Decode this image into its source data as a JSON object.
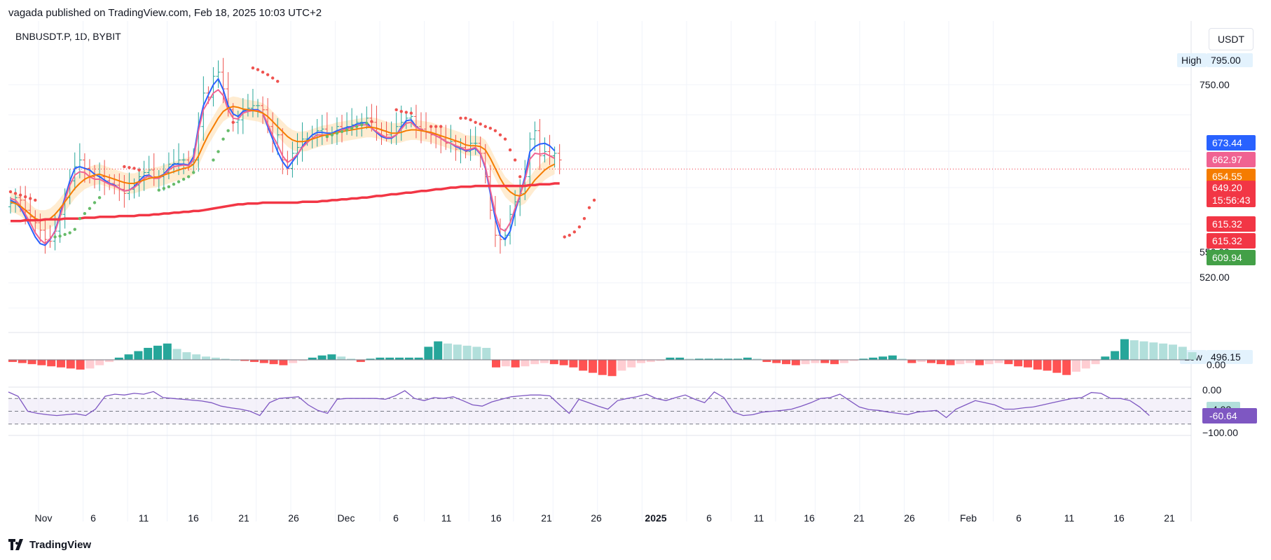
{
  "header": {
    "attribution": "vagada published on TradingView.com, Feb 18, 2025 10:03 UTC+2"
  },
  "symbol": {
    "label": "BNBUSDT.P, 1D, BYBIT"
  },
  "currency": "USDT",
  "footer": {
    "brand": "TradingView"
  },
  "colors": {
    "up": "#26a69a",
    "down": "#ef5350",
    "fast_ma": "#2962ff",
    "mid_ma": "#f06292",
    "slow_ma": "#f57c00",
    "long_ma": "#f23645",
    "psar_up": "#66bb6a",
    "psar_down": "#ef5350",
    "osc": "#7e57c2"
  },
  "chart_data": [
    {
      "type": "candlestick",
      "y_ticks": [
        "750.00",
        "520.00",
        "550.00"
      ],
      "ylim": [
        490,
        800
      ],
      "x_tick_labels": [
        "Nov",
        "6",
        "11",
        "16",
        "21",
        "26",
        "Dec",
        "6",
        "11",
        "16",
        "21",
        "26",
        "2025",
        "6",
        "11",
        "16",
        "21",
        "26",
        "Feb",
        "6",
        "11",
        "16",
        "21"
      ],
      "high_label": {
        "text": "High",
        "value": "795.00"
      },
      "low_label": {
        "text": "Low",
        "value": "496.15"
      },
      "price_badges": [
        {
          "value": "673.44",
          "color": "#2962ff"
        },
        {
          "value": "662.97",
          "color": "#f06292"
        },
        {
          "value": "654.55",
          "color": "#f57c00"
        },
        {
          "value": "649.20",
          "sub": "15:56:43",
          "color": "#f23645"
        },
        {
          "value": "615.32",
          "color": "#f23645"
        },
        {
          "value": "615.32",
          "color": "#f23645"
        },
        {
          "value": "609.94",
          "color": "#43a047"
        }
      ],
      "close": [
        608,
        615,
        612,
        600,
        592,
        585,
        576,
        565,
        563,
        575,
        595,
        615,
        635,
        652,
        660,
        650,
        640,
        637,
        640,
        635,
        632,
        630,
        625,
        620,
        625,
        630,
        640,
        645,
        648,
        640,
        640,
        645,
        655,
        656,
        660,
        660,
        655,
        660,
        700,
        740,
        735,
        760,
        765,
        745,
        720,
        705,
        708,
        720,
        722,
        725,
        725,
        720,
        700,
        680,
        690,
        660,
        650,
        668,
        675,
        685,
        685,
        690,
        695,
        697,
        690,
        692,
        700,
        698,
        700,
        702,
        705,
        705,
        710,
        705,
        697,
        695,
        690,
        692,
        700,
        705,
        710,
        712,
        700,
        697,
        693,
        690,
        688,
        685,
        680,
        682,
        673,
        675,
        670,
        680,
        680,
        668,
        640,
        600,
        570,
        565,
        570,
        595,
        610,
        620,
        640,
        685,
        695,
        665,
        670,
        665,
        668,
        660
      ],
      "series": [
        {
          "name": "",
          "style": "fast_ma",
          "values": [
            612,
            609,
            603,
            592,
            580,
            568,
            560,
            558,
            565,
            575,
            595,
            615,
            635,
            650,
            652,
            650,
            648,
            643,
            640,
            636,
            632,
            630,
            626,
            623,
            624,
            628,
            635,
            641,
            642,
            638,
            640,
            643,
            650,
            655,
            655,
            655,
            654,
            664,
            700,
            725,
            738,
            750,
            757,
            744,
            725,
            715,
            712,
            718,
            720,
            720,
            720,
            716,
            700,
            685,
            670,
            658,
            650,
            658,
            666,
            676,
            684,
            690,
            693,
            693,
            692,
            692,
            695,
            697,
            699,
            700,
            703,
            704,
            705,
            698,
            693,
            688,
            686,
            686,
            690,
            699,
            707,
            708,
            700,
            696,
            694,
            692,
            689,
            686,
            682,
            680,
            676,
            674,
            671,
            672,
            674,
            667,
            650,
            620,
            590,
            570,
            565,
            575,
            598,
            618,
            640,
            670,
            676,
            679,
            680,
            677,
            671
          ]
        },
        {
          "name": "",
          "style": "mid_ma",
          "values": [
            614,
            612,
            605,
            595,
            585,
            573,
            565,
            560,
            566,
            574,
            592,
            612,
            630,
            642,
            646,
            645,
            640,
            637,
            637,
            634,
            631,
            629,
            626,
            623,
            624,
            627,
            632,
            638,
            641,
            638,
            638,
            642,
            648,
            652,
            653,
            654,
            653,
            660,
            695,
            720,
            730,
            740,
            744,
            737,
            720,
            710,
            709,
            716,
            718,
            719,
            719,
            716,
            703,
            689,
            678,
            665,
            657,
            661,
            667,
            675,
            681,
            686,
            690,
            690,
            690,
            691,
            693,
            696,
            697,
            699,
            701,
            702,
            702,
            698,
            694,
            690,
            687,
            687,
            690,
            697,
            704,
            705,
            699,
            696,
            694,
            692,
            689,
            686,
            682,
            680,
            677,
            675,
            672,
            673,
            675,
            668,
            652,
            624,
            596,
            578,
            575,
            585,
            602,
            618,
            636,
            661,
            668,
            667,
            668,
            665,
            662
          ]
        },
        {
          "name": "",
          "style": "slow_ma",
          "values": [
            610,
            608,
            605,
            600,
            595,
            590,
            588,
            588,
            590,
            595,
            602,
            610,
            618,
            626,
            632,
            637,
            640,
            642,
            643,
            641,
            639,
            637,
            635,
            633,
            632,
            632,
            634,
            636,
            638,
            639,
            640,
            642,
            644,
            646,
            648,
            650,
            651,
            655,
            665,
            678,
            690,
            700,
            710,
            718,
            722,
            724,
            723,
            721,
            720,
            719,
            718,
            716,
            712,
            706,
            700,
            694,
            688,
            684,
            682,
            682,
            683,
            685,
            687,
            689,
            690,
            691,
            693,
            694,
            695,
            696,
            697,
            698,
            699,
            699,
            698,
            696,
            694,
            692,
            692,
            693,
            695,
            696,
            696,
            695,
            694,
            693,
            691,
            689,
            687,
            685,
            683,
            681,
            678,
            677,
            677,
            676,
            672,
            662,
            650,
            638,
            628,
            622,
            618,
            617,
            620,
            628,
            636,
            642,
            648,
            652,
            655
          ]
        },
        {
          "name": "",
          "style": "long_ma",
          "values": [
            587,
            587,
            587,
            588,
            588,
            588,
            588,
            589,
            589,
            589,
            589,
            590,
            590,
            590,
            590,
            591,
            591,
            591,
            592,
            592,
            592,
            592,
            593,
            593,
            593,
            593,
            594,
            594,
            594,
            595,
            595,
            596,
            596,
            597,
            597,
            598,
            598,
            599,
            599,
            600,
            601,
            602,
            603,
            604,
            605,
            606,
            607,
            607,
            608,
            608,
            608,
            609,
            609,
            609,
            609,
            609,
            609,
            609,
            609,
            610,
            610,
            610,
            610,
            611,
            611,
            612,
            612,
            613,
            613,
            614,
            614,
            615,
            615,
            616,
            617,
            617,
            618,
            619,
            619,
            620,
            621,
            621,
            622,
            623,
            623,
            624,
            625,
            625,
            626,
            627,
            627,
            628,
            628,
            628,
            629,
            629,
            629,
            629,
            629,
            629,
            629,
            629,
            629,
            629,
            629,
            630,
            630,
            631,
            631,
            631,
            632,
            632
          ]
        },
        {
          "name": "",
          "style": "psar",
          "values": [
            622,
            620,
            618,
            616,
            614,
            612,
            null,
            null,
            null,
            568,
            569,
            571,
            573,
            577,
            590,
            596,
            602,
            609,
            615,
            null,
            null,
            null,
            null,
            652,
            651,
            650,
            648,
            null,
            null,
            null,
            624,
            626,
            628,
            631,
            634,
            637,
            640,
            645,
            null,
            null,
            null,
            660,
            670,
            685,
            695,
            705,
            null,
            null,
            null,
            770,
            768,
            765,
            762,
            758,
            754,
            null,
            null,
            null,
            null,
            null,
            null,
            null,
            null,
            null,
            688,
            690,
            692,
            694,
            696,
            698,
            700,
            702,
            704,
            706,
            null,
            null,
            null,
            null,
            720,
            718,
            717,
            716,
            null,
            null,
            null,
            700,
            700,
            700,
            null,
            null,
            null,
            710,
            710,
            708,
            705,
            703,
            700,
            698,
            695,
            690,
            685,
            672,
            660,
            640,
            null,
            null,
            null,
            null,
            null,
            null,
            null,
            null,
            568,
            570,
            574,
            580,
            590,
            603,
            612
          ]
        }
      ]
    },
    {
      "type": "bar",
      "name": "",
      "value_label": "4.03",
      "zero_label": "0.00",
      "values": [
        -2,
        -3,
        -4,
        -5,
        -6,
        -7,
        -8,
        -9,
        -8,
        -5,
        -2,
        2,
        5,
        8,
        11,
        13,
        15,
        10,
        7,
        5,
        3,
        2,
        1,
        0,
        -1,
        -2,
        -3,
        -4,
        -5,
        -3,
        -1,
        2,
        4,
        5,
        3,
        1,
        -2,
        1,
        2,
        2,
        2,
        2,
        2,
        12,
        17,
        15,
        14,
        13,
        12,
        11,
        -7,
        -6,
        -7,
        -6,
        -4,
        -3,
        -4,
        -5,
        -7,
        -10,
        -12,
        -14,
        -15,
        -10,
        -7,
        -3,
        -2,
        -1,
        2,
        2,
        1,
        1,
        1,
        1,
        1,
        1,
        2,
        1,
        -2,
        -3,
        -4,
        -5,
        -4,
        -3,
        -3,
        -4,
        -3,
        -1,
        1,
        2,
        3,
        4,
        1,
        -3,
        -2,
        -3,
        -4,
        -5,
        -4,
        -3,
        -5,
        -4,
        -3,
        -4,
        -6,
        -7,
        -9,
        -10,
        -12,
        -14,
        -11,
        -8,
        -4,
        3,
        8,
        19,
        18,
        17,
        16,
        15,
        14,
        12,
        7
      ]
    },
    {
      "type": "line",
      "name": "",
      "value_label": "-60.64",
      "y_ticks": [
        "0.00",
        "−100.00"
      ],
      "ylim": [
        -110,
        5
      ],
      "values": [
        -5,
        -15,
        -50,
        -55,
        -58,
        -60,
        -58,
        -56,
        -60,
        -45,
        -15,
        -10,
        -12,
        -8,
        -10,
        -4,
        -18,
        -20,
        -22,
        -24,
        -26,
        -30,
        -38,
        -42,
        -45,
        -50,
        -60,
        -30,
        -20,
        -18,
        -16,
        -35,
        -48,
        -55,
        -22,
        -20,
        -20,
        -20,
        -20,
        -22,
        -14,
        -2,
        -20,
        -25,
        -18,
        -20,
        -16,
        -25,
        -35,
        -38,
        -28,
        -22,
        -16,
        -14,
        -12,
        -12,
        -14,
        -35,
        -55,
        -22,
        -30,
        -38,
        -45,
        -25,
        -20,
        -16,
        -10,
        -20,
        -25,
        -18,
        -12,
        -22,
        -30,
        -5,
        -18,
        -52,
        -60,
        -58,
        -52,
        -50,
        -48,
        -45,
        -38,
        -30,
        -20,
        -18,
        -10,
        -25,
        -40,
        -46,
        -48,
        -52,
        -55,
        -58,
        -52,
        -50,
        -48,
        -65,
        -45,
        -35,
        -25,
        -30,
        -35,
        -45,
        -45,
        -42,
        -40,
        -35,
        -30,
        -25,
        -20,
        -18,
        -6,
        -8,
        -20,
        -20,
        -25,
        -40,
        -60
      ]
    }
  ]
}
